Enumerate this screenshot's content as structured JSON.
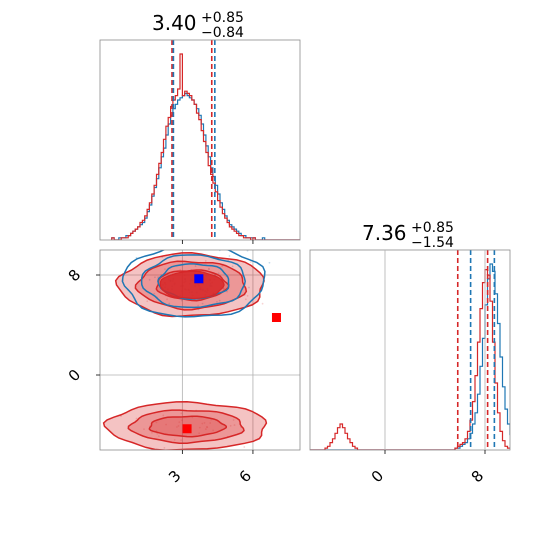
{
  "chart_data": {
    "type": "corner",
    "colors": {
      "blue": "#1f77b4",
      "red": "#d62728",
      "blue_marker": "#0000ff",
      "red_marker": "#ff0000"
    },
    "grid": true,
    "param1": {
      "title": {
        "value": "3.40",
        "plus": "+0.85",
        "minus": "−0.84"
      },
      "xlim": [
        -0.5,
        8.0
      ],
      "xticks": [
        {
          "value": 3,
          "label": "3"
        },
        {
          "value": 6,
          "label": "6"
        }
      ],
      "quantiles": {
        "blue": [
          2.62,
          4.38
        ],
        "red": [
          2.56,
          4.25
        ]
      },
      "hist": {
        "bin_start": 0.0,
        "bin_width": 0.1,
        "blue": [
          1,
          0,
          0,
          1,
          1,
          1,
          2,
          2,
          3,
          4,
          5,
          6,
          7,
          8,
          10,
          13,
          16,
          20,
          24,
          28,
          33,
          38,
          42,
          48,
          53,
          57,
          60,
          62,
          64,
          65,
          66,
          67,
          66,
          65,
          64,
          62,
          60,
          57,
          53,
          48,
          43,
          38,
          33,
          29,
          25,
          21,
          17,
          14,
          11,
          9,
          7,
          6,
          5,
          4,
          3,
          2,
          2,
          1,
          1,
          1,
          1,
          0,
          0,
          0,
          1,
          0,
          0,
          0,
          0,
          0,
          0,
          0,
          0,
          0,
          0,
          0,
          0,
          0,
          0,
          0
        ],
        "red": [
          1,
          0,
          0,
          0,
          1,
          1,
          1,
          2,
          3,
          4,
          5,
          6,
          8,
          9,
          11,
          14,
          17,
          21,
          25,
          30,
          35,
          40,
          46,
          52,
          56,
          61,
          64,
          66,
          69,
          85,
          66,
          68,
          67,
          66,
          64,
          62,
          58,
          55,
          50,
          45,
          40,
          34,
          30,
          26,
          22,
          18,
          15,
          12,
          10,
          8,
          6,
          5,
          4,
          3,
          2,
          2,
          1,
          1,
          1,
          0,
          1,
          0,
          0,
          0,
          0,
          0,
          0,
          0,
          0,
          0,
          0,
          0,
          0,
          0,
          0,
          0,
          0,
          0,
          0,
          0
        ]
      }
    },
    "param2": {
      "title": {
        "value": "7.36",
        "plus": "+0.85",
        "minus": "−1.54"
      },
      "xlim": [
        -6.0,
        10.0
      ],
      "ylim": [
        -6.0,
        10.0
      ],
      "ticks": [
        {
          "value": 0,
          "label": "0"
        },
        {
          "value": 8,
          "label": "8"
        }
      ],
      "quantiles": {
        "blue": [
          6.85,
          8.75
        ],
        "red": [
          5.82,
          8.21
        ]
      },
      "hist": {
        "bin_start": -6.0,
        "bin_width": 0.2,
        "blue": [
          0,
          0,
          0,
          0,
          0,
          0,
          0,
          0,
          0,
          0,
          0,
          0,
          0,
          0,
          0,
          0,
          0,
          0,
          0,
          0,
          0,
          0,
          0,
          0,
          0,
          0,
          0,
          0,
          0,
          0,
          0,
          0,
          0,
          0,
          0,
          0,
          0,
          0,
          0,
          0,
          0,
          0,
          0,
          0,
          0,
          0,
          0,
          0,
          0,
          0,
          0,
          0,
          0,
          0,
          0,
          0,
          0,
          0,
          1,
          1,
          2,
          3,
          4,
          6,
          9,
          14,
          20,
          30,
          45,
          60,
          78,
          92,
          100,
          96,
          84,
          68,
          50,
          34,
          22,
          14,
          8,
          5,
          3,
          2,
          1,
          1,
          0,
          0,
          0,
          0
        ],
        "red": [
          0,
          0,
          0,
          0,
          0,
          0,
          1,
          2,
          4,
          6,
          9,
          12,
          14,
          12,
          9,
          6,
          4,
          2,
          1,
          0,
          0,
          0,
          0,
          0,
          0,
          0,
          0,
          0,
          0,
          0,
          0,
          0,
          0,
          0,
          0,
          0,
          0,
          0,
          0,
          0,
          0,
          0,
          0,
          0,
          0,
          0,
          0,
          0,
          0,
          0,
          0,
          0,
          0,
          0,
          0,
          0,
          0,
          0,
          1,
          2,
          3,
          4,
          6,
          10,
          16,
          26,
          40,
          58,
          76,
          90,
          97,
          94,
          80,
          58,
          36,
          20,
          10,
          5,
          2,
          1,
          1,
          0,
          0,
          0,
          0,
          0,
          0,
          0,
          0,
          0
        ]
      }
    },
    "joint": {
      "xlim": [
        -0.5,
        8.0
      ],
      "ylim": [
        -6.0,
        10.0
      ],
      "blue_mode": {
        "x": 3.7,
        "y": 7.7,
        "cx": 3.5,
        "cy": 7.5,
        "rx": [
          1.5,
          2.2,
          3.0
        ],
        "ry": [
          1.4,
          2.1,
          2.9
        ]
      },
      "red_upper": {
        "cx": 3.4,
        "cy": 7.2,
        "rx": [
          1.5,
          2.3,
          3.1
        ],
        "ry": [
          1.2,
          1.9,
          2.5
        ]
      },
      "red_lower": {
        "cx": 3.2,
        "cy": -4.1,
        "rx": [
          1.6,
          2.4,
          3.4
        ],
        "ry": [
          0.8,
          1.3,
          1.9
        ]
      },
      "markers": {
        "blue": [
          {
            "x": 3.7,
            "y": 7.7
          }
        ],
        "red": [
          {
            "x": 3.7,
            "y": 7.7
          },
          {
            "x": 7.0,
            "y": 4.6
          },
          {
            "x": 3.2,
            "y": -4.3
          }
        ]
      }
    }
  }
}
